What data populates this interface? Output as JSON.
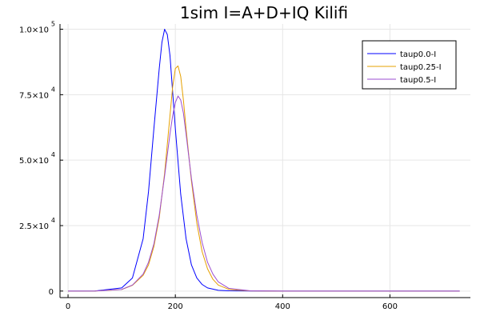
{
  "chart_data": {
    "type": "line",
    "title": "1sim I=A+D+IQ Kilifi",
    "xlabel": "",
    "ylabel": "",
    "xlim": [
      -15,
      750
    ],
    "ylim": [
      -2500,
      102000
    ],
    "x_ticks": [
      0,
      200,
      400,
      600
    ],
    "x_tick_labels": [
      "0",
      "200",
      "400",
      "600"
    ],
    "y_ticks": [
      0,
      25000,
      50000,
      75000,
      100000
    ],
    "y_tick_labels": [
      {
        "mantissa": "0",
        "exponent": ""
      },
      {
        "mantissa": "2.5×10",
        "exponent": "4"
      },
      {
        "mantissa": "5.0×10",
        "exponent": "4"
      },
      {
        "mantissa": "7.5×10",
        "exponent": "4"
      },
      {
        "mantissa": "1.0×10",
        "exponent": "5"
      }
    ],
    "grid": true,
    "legend_position": "top-right",
    "series": [
      {
        "name": "taup0.0-I",
        "color": "#0000ff",
        "x": [
          0,
          50,
          100,
          120,
          140,
          150,
          160,
          170,
          175,
          180,
          185,
          190,
          195,
          200,
          210,
          220,
          230,
          240,
          250,
          260,
          280,
          300,
          340,
          400,
          500,
          600,
          730
        ],
        "y": [
          0,
          20,
          1200,
          5000,
          20000,
          38000,
          62000,
          85000,
          95000,
          100000,
          98000,
          90000,
          76000,
          62000,
          37000,
          20000,
          10000,
          5000,
          2500,
          1200,
          300,
          80,
          10,
          0,
          0,
          0,
          0
        ]
      },
      {
        "name": "taup0.25-I",
        "color": "#e6a000",
        "x": [
          0,
          50,
          100,
          120,
          140,
          150,
          160,
          170,
          180,
          190,
          195,
          200,
          205,
          210,
          215,
          220,
          230,
          240,
          250,
          260,
          270,
          280,
          300,
          340,
          400,
          500,
          600,
          730
        ],
        "y": [
          0,
          20,
          600,
          2200,
          6000,
          10000,
          17000,
          28000,
          45000,
          67000,
          78000,
          85000,
          86000,
          82000,
          73000,
          62000,
          42000,
          26000,
          15000,
          8500,
          4500,
          2300,
          600,
          50,
          0,
          0,
          0,
          0
        ]
      },
      {
        "name": "taup0.5-I",
        "color": "#9b4dd1",
        "x": [
          0,
          50,
          100,
          120,
          140,
          150,
          160,
          170,
          180,
          190,
          195,
          200,
          205,
          210,
          215,
          220,
          230,
          240,
          250,
          260,
          270,
          280,
          300,
          340,
          400,
          500,
          600,
          730
        ],
        "y": [
          0,
          20,
          600,
          2300,
          6500,
          11000,
          18000,
          29000,
          44000,
          60000,
          67000,
          72000,
          74500,
          73000,
          68000,
          60000,
          43000,
          29000,
          18500,
          11000,
          6500,
          3500,
          1000,
          100,
          0,
          0,
          0,
          0
        ]
      }
    ]
  }
}
